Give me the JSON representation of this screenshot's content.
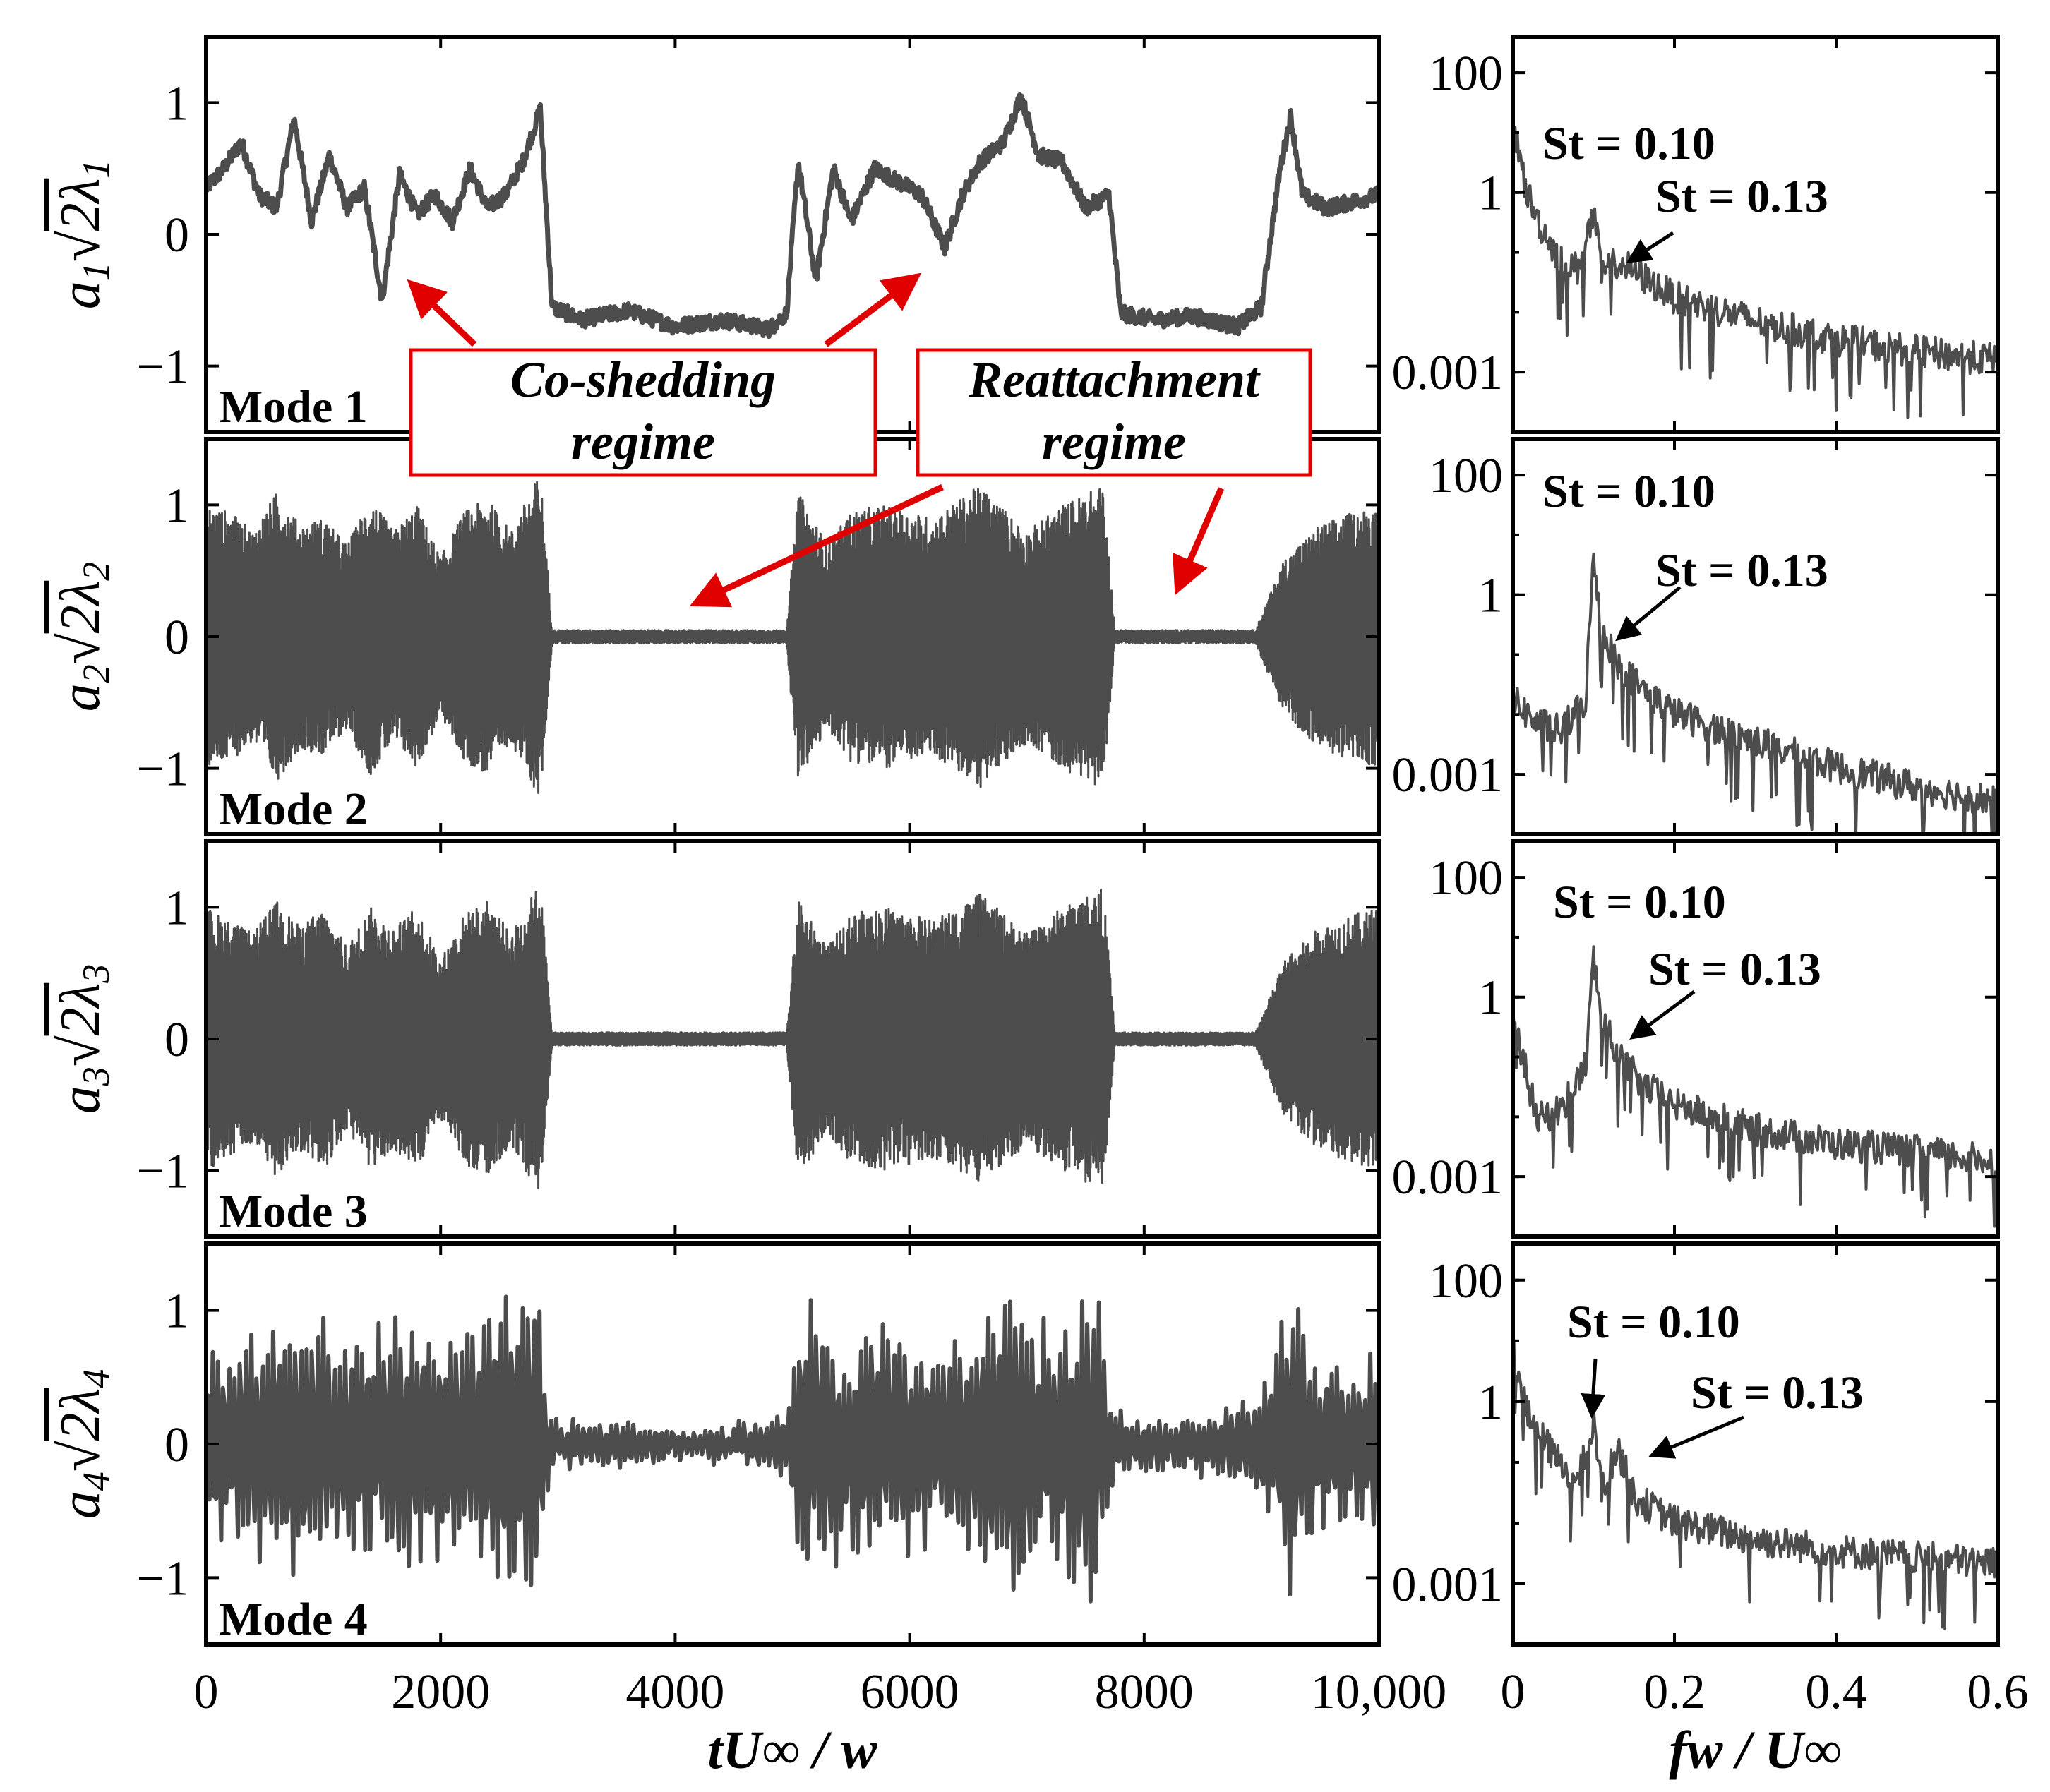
{
  "chart_data": [
    {
      "type": "line",
      "panel": "time-series",
      "x_tick_labels": [
        "0",
        "2000",
        "4000",
        "6000",
        "8000",
        "10,000"
      ],
      "x_ticks": [
        0,
        2000,
        4000,
        6000,
        8000,
        10000
      ],
      "xlim": [
        0,
        10000
      ],
      "xlabel": "tU∞ / w",
      "ylim": [
        -1.5,
        1.5
      ],
      "y_ticks": [
        -1,
        0,
        1
      ],
      "y_tick_labels": [
        "−1",
        "0",
        "1"
      ],
      "regimes": [
        {
          "name": "co-shedding",
          "x": [
            0,
            2950
          ]
        },
        {
          "name": "reattachment",
          "x": [
            2950,
            4950
          ]
        },
        {
          "name": "co-shedding",
          "x": [
            4950,
            7750
          ]
        },
        {
          "name": "reattachment",
          "x": [
            7750,
            8950
          ]
        },
        {
          "name": "co-shedding",
          "x": [
            8950,
            10000
          ]
        }
      ],
      "rows": [
        {
          "label": "Mode 1",
          "ylabel_base": "a",
          "ylabel_sub": "1",
          "ylabel_rad": "2λ",
          "ylabel_rad_sub": "1",
          "style": "slow",
          "keypoints": [
            [
              0,
              0.35
            ],
            [
              150,
              0.5
            ],
            [
              300,
              0.7
            ],
            [
              450,
              0.3
            ],
            [
              600,
              0.2
            ],
            [
              750,
              0.88
            ],
            [
              900,
              0.1
            ],
            [
              1050,
              0.6
            ],
            [
              1200,
              0.2
            ],
            [
              1350,
              0.35
            ],
            [
              1500,
              -0.5
            ],
            [
              1650,
              0.45
            ],
            [
              1800,
              0.15
            ],
            [
              1950,
              0.3
            ],
            [
              2100,
              0.1
            ],
            [
              2250,
              0.5
            ],
            [
              2400,
              0.2
            ],
            [
              2550,
              0.3
            ],
            [
              2700,
              0.55
            ],
            [
              2850,
              0.95
            ],
            [
              2950,
              -0.55
            ],
            [
              3200,
              -0.65
            ],
            [
              3600,
              -0.58
            ],
            [
              4000,
              -0.7
            ],
            [
              4400,
              -0.65
            ],
            [
              4800,
              -0.72
            ],
            [
              4950,
              -0.6
            ],
            [
              5050,
              0.55
            ],
            [
              5200,
              -0.35
            ],
            [
              5350,
              0.5
            ],
            [
              5500,
              0.1
            ],
            [
              5700,
              0.5
            ],
            [
              5900,
              0.4
            ],
            [
              6100,
              0.3
            ],
            [
              6300,
              -0.1
            ],
            [
              6450,
              0.3
            ],
            [
              6600,
              0.55
            ],
            [
              6800,
              0.7
            ],
            [
              6950,
              1.05
            ],
            [
              7100,
              0.6
            ],
            [
              7300,
              0.55
            ],
            [
              7500,
              0.2
            ],
            [
              7700,
              0.3
            ],
            [
              7800,
              -0.6
            ],
            [
              8100,
              -0.65
            ],
            [
              8400,
              -0.62
            ],
            [
              8800,
              -0.7
            ],
            [
              9000,
              -0.55
            ],
            [
              9150,
              0.45
            ],
            [
              9250,
              0.9
            ],
            [
              9350,
              0.3
            ],
            [
              9550,
              0.2
            ],
            [
              9800,
              0.25
            ],
            [
              10000,
              0.3
            ]
          ]
        },
        {
          "label": "Mode 2",
          "ylabel_base": "a",
          "ylabel_sub": "2",
          "ylabel_rad": "2λ",
          "ylabel_rad_sub": "2",
          "style": "oscillatory",
          "envelope": [
            [
              0,
              1.0
            ],
            [
              200,
              0.95
            ],
            [
              400,
              0.8
            ],
            [
              600,
              1.1
            ],
            [
              800,
              0.85
            ],
            [
              1000,
              0.9
            ],
            [
              1200,
              0.7
            ],
            [
              1400,
              1.05
            ],
            [
              1600,
              0.8
            ],
            [
              1800,
              1.0
            ],
            [
              2000,
              0.6
            ],
            [
              2200,
              0.95
            ],
            [
              2400,
              1.05
            ],
            [
              2600,
              0.8
            ],
            [
              2850,
              1.25
            ],
            [
              2950,
              0.05
            ],
            [
              4950,
              0.05
            ],
            [
              5050,
              1.1
            ],
            [
              5300,
              0.7
            ],
            [
              5500,
              0.95
            ],
            [
              5800,
              1.0
            ],
            [
              6200,
              0.9
            ],
            [
              6600,
              1.15
            ],
            [
              7000,
              0.8
            ],
            [
              7300,
              1.0
            ],
            [
              7650,
              1.15
            ],
            [
              7750,
              0.05
            ],
            [
              8950,
              0.05
            ],
            [
              9200,
              0.6
            ],
            [
              9500,
              0.85
            ],
            [
              9800,
              0.95
            ],
            [
              10000,
              1.0
            ]
          ]
        },
        {
          "label": "Mode 3",
          "ylabel_base": "a",
          "ylabel_sub": "3",
          "ylabel_rad": "2λ",
          "ylabel_rad_sub": "3",
          "style": "oscillatory",
          "envelope": [
            [
              0,
              1.0
            ],
            [
              200,
              0.9
            ],
            [
              400,
              0.8
            ],
            [
              600,
              1.05
            ],
            [
              800,
              0.85
            ],
            [
              1000,
              1.0
            ],
            [
              1200,
              0.7
            ],
            [
              1400,
              1.0
            ],
            [
              1600,
              0.85
            ],
            [
              1800,
              1.0
            ],
            [
              2000,
              0.6
            ],
            [
              2200,
              0.95
            ],
            [
              2400,
              1.05
            ],
            [
              2600,
              0.8
            ],
            [
              2850,
              1.2
            ],
            [
              2950,
              0.05
            ],
            [
              4950,
              0.05
            ],
            [
              5050,
              1.05
            ],
            [
              5300,
              0.7
            ],
            [
              5500,
              0.95
            ],
            [
              5800,
              1.0
            ],
            [
              6200,
              0.9
            ],
            [
              6600,
              1.1
            ],
            [
              7000,
              0.8
            ],
            [
              7300,
              1.0
            ],
            [
              7650,
              1.15
            ],
            [
              7750,
              0.05
            ],
            [
              8950,
              0.05
            ],
            [
              9200,
              0.6
            ],
            [
              9500,
              0.85
            ],
            [
              9800,
              0.95
            ],
            [
              10000,
              1.0
            ]
          ]
        },
        {
          "label": "Mode 4",
          "ylabel_base": "a",
          "ylabel_sub": "4",
          "ylabel_rad": "2λ",
          "ylabel_rad_sub": "4",
          "style": "intermittent",
          "envelope": [
            [
              0,
              0.75
            ],
            [
              400,
              0.9
            ],
            [
              800,
              1.1
            ],
            [
              1200,
              0.8
            ],
            [
              1600,
              1.2
            ],
            [
              2000,
              0.9
            ],
            [
              2400,
              1.1
            ],
            [
              2800,
              1.4
            ],
            [
              2950,
              0.2
            ],
            [
              3400,
              0.2
            ],
            [
              4000,
              0.12
            ],
            [
              4600,
              0.15
            ],
            [
              4950,
              0.3
            ],
            [
              5050,
              1.2
            ],
            [
              5400,
              0.9
            ],
            [
              5800,
              1.0
            ],
            [
              6200,
              0.8
            ],
            [
              6600,
              1.0
            ],
            [
              6850,
              1.5
            ],
            [
              7200,
              0.9
            ],
            [
              7600,
              1.3
            ],
            [
              7750,
              0.25
            ],
            [
              8300,
              0.2
            ],
            [
              8800,
              0.3
            ],
            [
              9100,
              0.6
            ],
            [
              9250,
              1.4
            ],
            [
              9500,
              0.7
            ],
            [
              9800,
              0.6
            ],
            [
              10000,
              0.8
            ]
          ]
        }
      ]
    },
    {
      "type": "line",
      "panel": "spectra",
      "yscale": "log",
      "xlim": [
        0,
        0.6
      ],
      "x_ticks": [
        0,
        0.2,
        0.4,
        0.6
      ],
      "x_tick_labels": [
        "0",
        "0.2",
        "0.4",
        "0.6"
      ],
      "xlabel": "fw / U∞",
      "ylim": [
        0.0001,
        400
      ],
      "y_ticks": [
        100,
        1,
        0.001
      ],
      "y_tick_labels": [
        "100",
        "1",
        "0.001"
      ],
      "annotations": [
        "St = 0.10",
        "St = 0.13"
      ],
      "rows": [
        {
          "spectrum": [
            [
              0,
              20
            ],
            [
              0.015,
              1.5
            ],
            [
              0.03,
              0.4
            ],
            [
              0.06,
              0.08
            ],
            [
              0.08,
              0.06
            ],
            [
              0.1,
              0.5
            ],
            [
              0.11,
              0.05
            ],
            [
              0.13,
              0.08
            ],
            [
              0.2,
              0.02
            ],
            [
              0.3,
              0.008
            ],
            [
              0.4,
              0.004
            ],
            [
              0.5,
              0.0025
            ],
            [
              0.6,
              0.0018
            ]
          ]
        },
        {
          "spectrum": [
            [
              0,
              0.02
            ],
            [
              0.03,
              0.008
            ],
            [
              0.06,
              0.006
            ],
            [
              0.09,
              0.02
            ],
            [
              0.1,
              5.0
            ],
            [
              0.11,
              0.3
            ],
            [
              0.13,
              0.08
            ],
            [
              0.16,
              0.03
            ],
            [
              0.2,
              0.012
            ],
            [
              0.3,
              0.004
            ],
            [
              0.4,
              0.0015
            ],
            [
              0.5,
              0.0007
            ],
            [
              0.6,
              0.0004
            ]
          ]
        },
        {
          "spectrum": [
            [
              0,
              0.6
            ],
            [
              0.03,
              0.01
            ],
            [
              0.06,
              0.015
            ],
            [
              0.09,
              0.08
            ],
            [
              0.1,
              5.0
            ],
            [
              0.11,
              0.5
            ],
            [
              0.13,
              0.12
            ],
            [
              0.16,
              0.04
            ],
            [
              0.2,
              0.018
            ],
            [
              0.3,
              0.007
            ],
            [
              0.4,
              0.004
            ],
            [
              0.5,
              0.003
            ],
            [
              0.6,
              0.002
            ]
          ]
        },
        {
          "spectrum": [
            [
              0,
              8
            ],
            [
              0.02,
              0.6
            ],
            [
              0.05,
              0.15
            ],
            [
              0.08,
              0.05
            ],
            [
              0.1,
              0.5
            ],
            [
              0.11,
              0.04
            ],
            [
              0.13,
              0.2
            ],
            [
              0.15,
              0.03
            ],
            [
              0.2,
              0.012
            ],
            [
              0.3,
              0.006
            ],
            [
              0.4,
              0.004
            ],
            [
              0.5,
              0.003
            ],
            [
              0.6,
              0.0025
            ]
          ]
        }
      ]
    }
  ],
  "annotations": {
    "box1_line1": "Co-shedding",
    "box1_line2": "regime",
    "box2_line1": "Reattachment",
    "box2_line2": "regime",
    "st1": "St = 0.10",
    "st2": "St = 0.13"
  },
  "colors": {
    "trace": "#4d4d4d",
    "annotation": "#e00000",
    "axis": "#000000"
  }
}
